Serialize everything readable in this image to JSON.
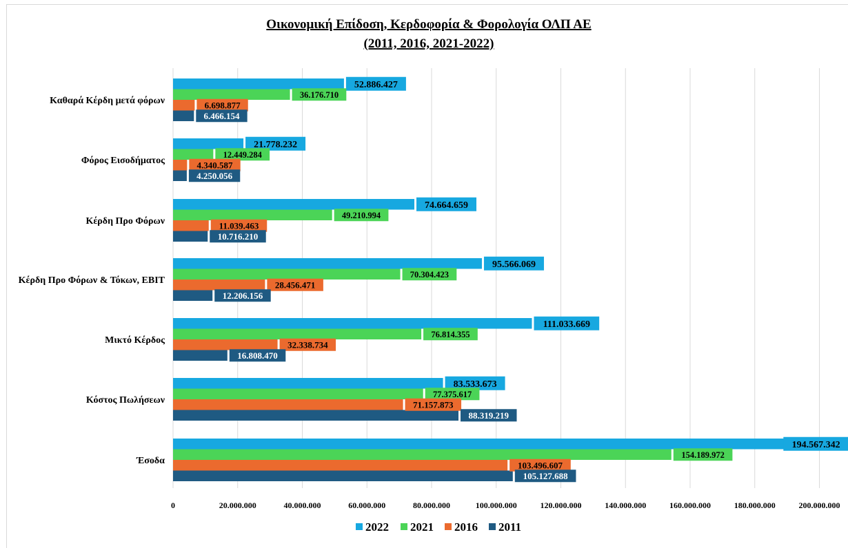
{
  "chart_data": {
    "type": "bar",
    "orientation": "horizontal",
    "title_line1": "Οικονομική Επίδοση, Κερδοφορία & Φορολογία ΟΛΠ ΑΕ",
    "title_line2": "(2011, 2016, 2021-2022)",
    "categories": [
      "Καθαρά Κέρδη μετά φόρων",
      "Φόρος Εισοδήματος",
      "Κέρδη Προ Φόρων",
      "Κέρδη Προ Φόρων & Τόκων, EBIT",
      "Μικτό Κέρδος",
      "Κόστος Πωλήσεων",
      "Έσοδα"
    ],
    "series": [
      {
        "name": "2022",
        "color": "#17a8e0",
        "values": [
          52886427,
          21778232,
          74664659,
          95566069,
          111033669,
          83533673,
          194567342
        ],
        "labels": [
          "52.886.427",
          "21.778.232",
          "74.664.659",
          "95.566.069",
          "111.033.669",
          "83.533.673",
          "194.567.342"
        ]
      },
      {
        "name": "2021",
        "color": "#4bd457",
        "values": [
          36176710,
          12449284,
          49210994,
          70304423,
          76814355,
          77375617,
          154189972
        ],
        "labels": [
          "36.176.710",
          "12.449.284",
          "49.210.994",
          "70.304.423",
          "76.814.355",
          "77.375.617",
          "154.189.972"
        ]
      },
      {
        "name": "2016",
        "color": "#eb6a2e",
        "values": [
          6698877,
          4340587,
          11039463,
          28456471,
          32338734,
          71157873,
          103496607
        ],
        "labels": [
          "6.698.877",
          "4.340.587",
          "11.039.463",
          "28.456.471",
          "32.338.734",
          "71.157.873",
          "103.496.607"
        ]
      },
      {
        "name": "2011",
        "color": "#1f5a82",
        "values": [
          6466154,
          4250056,
          10716210,
          12206156,
          16808470,
          88319219,
          105127688
        ],
        "labels": [
          "6.466.154",
          "4.250.056",
          "10.716.210",
          "12.206.156",
          "16.808.470",
          "88.319.219",
          "105.127.688"
        ]
      }
    ],
    "legend_order": [
      "2022",
      "2021",
      "2016",
      "2011"
    ],
    "xlim": [
      0,
      200000000
    ],
    "x_ticks": [
      "0",
      "20.000.000",
      "40.000.000",
      "60.000.000",
      "80.000.000",
      "100.000.000",
      "120.000.000",
      "140.000.000",
      "160.000.000",
      "180.000.000",
      "200.000.000"
    ],
    "grid": true,
    "legend_position": "bottom"
  }
}
